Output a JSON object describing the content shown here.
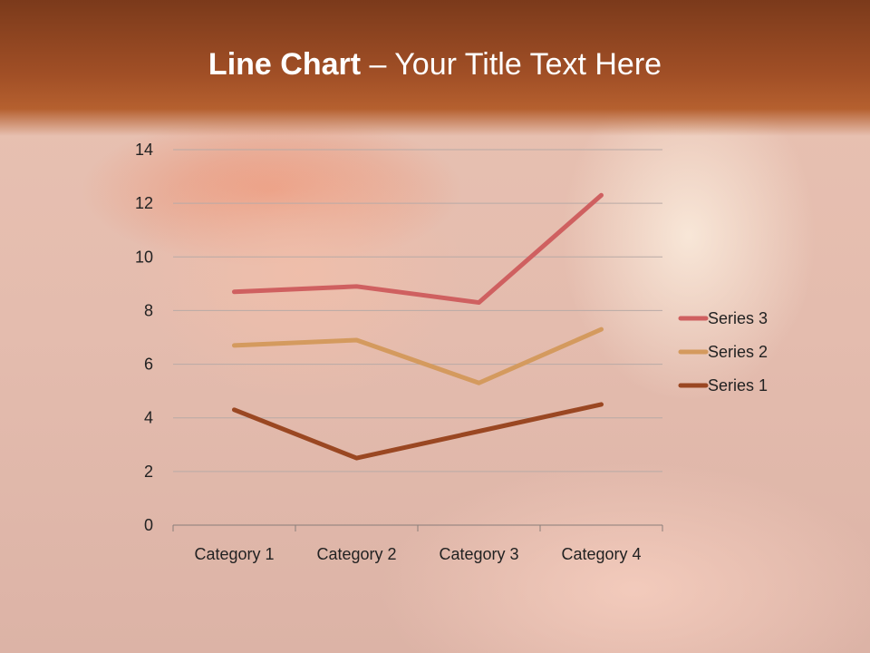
{
  "slide": {
    "title_bold": "Line Chart",
    "title_rest": " – Your Title Text Here"
  },
  "chart_data": {
    "type": "line",
    "stacked": true,
    "title": "",
    "xlabel": "",
    "ylabel": "",
    "categories": [
      "Category 1",
      "Category 2",
      "Category 3",
      "Category 4"
    ],
    "series": [
      {
        "name": "Series 1",
        "values": [
          4.3,
          2.5,
          3.5,
          4.5
        ],
        "color": "#9a4722"
      },
      {
        "name": "Series 2",
        "values": [
          2.4,
          4.4,
          1.8,
          2.8
        ],
        "color": "#d49a5e"
      },
      {
        "name": "Series 3",
        "values": [
          2,
          2,
          3,
          5
        ],
        "color": "#cf6060"
      }
    ],
    "ylim": [
      0,
      14
    ],
    "yticks": [
      "0",
      "2",
      "4",
      "6",
      "8",
      "10",
      "12",
      "14"
    ],
    "grid": true,
    "legend": "right"
  }
}
